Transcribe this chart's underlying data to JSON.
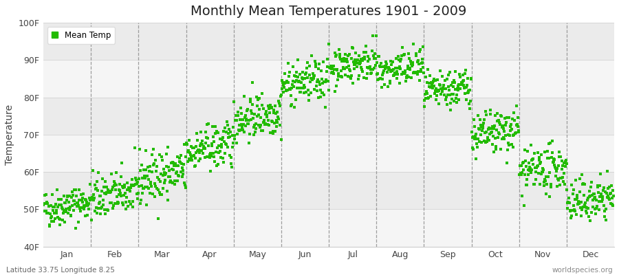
{
  "title": "Monthly Mean Temperatures 1901 - 2009",
  "ylabel": "Temperature",
  "xlabel_months": [
    "Jan",
    "Feb",
    "Mar",
    "Apr",
    "May",
    "Jun",
    "Jul",
    "Aug",
    "Sep",
    "Oct",
    "Nov",
    "Dec"
  ],
  "ylim": [
    40,
    100
  ],
  "yticks": [
    40,
    50,
    60,
    70,
    80,
    90,
    100
  ],
  "ytick_labels": [
    "40F",
    "50F",
    "60F",
    "70F",
    "80F",
    "90F",
    "100F"
  ],
  "dot_color": "#22bb00",
  "legend_label": "Mean Temp",
  "footer_left": "Latitude 33.75 Longitude 8.25",
  "footer_right": "worldspecies.org",
  "bg_color": "#ffffff",
  "band_colors": [
    "#f5f5f5",
    "#ebebeb"
  ],
  "years": 109,
  "monthly_mean_F": [
    51.0,
    54.0,
    59.0,
    66.5,
    75.0,
    84.0,
    89.0,
    87.5,
    82.0,
    70.5,
    60.5,
    52.5
  ],
  "monthly_std_F": [
    2.5,
    3.0,
    3.5,
    3.0,
    3.0,
    2.8,
    2.5,
    2.5,
    2.5,
    3.0,
    3.0,
    2.8
  ],
  "warming_trend_per_year": 0.02
}
